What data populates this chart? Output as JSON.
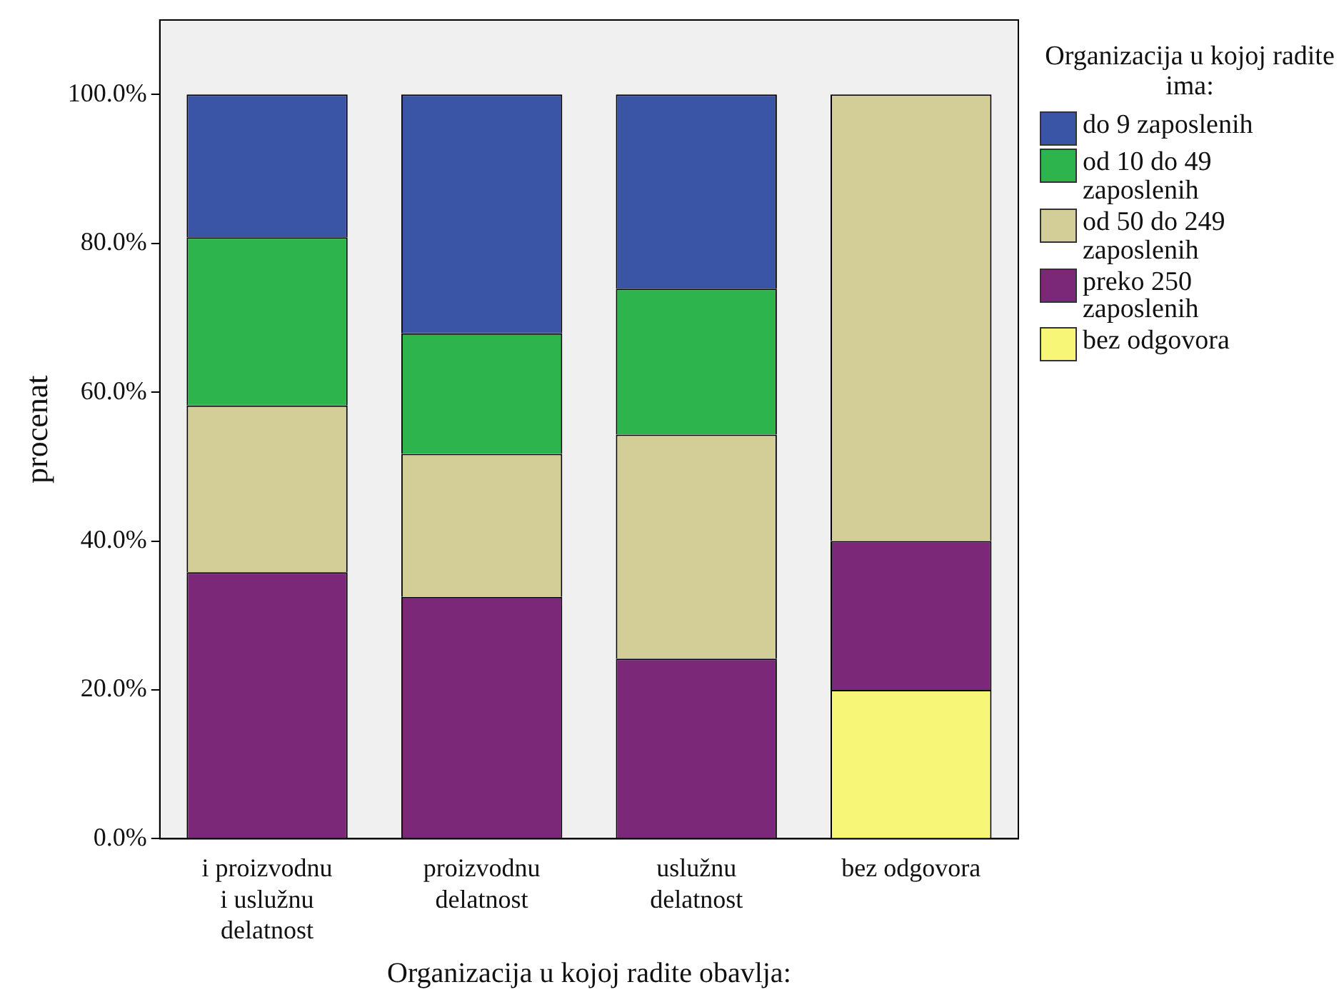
{
  "chart_data": {
    "type": "bar",
    "stacked": true,
    "xlabel": "Organizacija u kojoj radite obavlja:",
    "ylabel": "procenat",
    "legend_title": "Organizacija u kojoj radite ima:",
    "legend": "right",
    "categories": [
      "i proizvodnu i uslužnu delatnost",
      "proizvodnu delatnost",
      "uslužnu delatnost",
      "bez odgovora"
    ],
    "series": [
      {
        "name": "bez odgovora",
        "color": "#f8f677",
        "values": [
          0,
          0,
          0,
          20
        ]
      },
      {
        "name": "preko 250 zaposlenih",
        "color": "#7a2877",
        "values": [
          35.8,
          32.5,
          24.2,
          20
        ]
      },
      {
        "name": "od 50 do 249 zaposlenih",
        "color": "#d3ce98",
        "values": [
          22.4,
          19.2,
          30.1,
          60
        ]
      },
      {
        "name": "od 10 do 49 zaposlenih",
        "color": "#2db44c",
        "values": [
          22.6,
          16.2,
          19.6,
          0
        ]
      },
      {
        "name": "do 9 zaposlenih",
        "color": "#3a54a6",
        "values": [
          19.2,
          32.1,
          26.1,
          0
        ]
      }
    ],
    "ylim": [
      0,
      110
    ],
    "yticks": [
      {
        "value": 0,
        "label": "0.0%"
      },
      {
        "value": 20,
        "label": "20.0%"
      },
      {
        "value": 40,
        "label": "40.0%"
      },
      {
        "value": 60,
        "label": "60.0%"
      },
      {
        "value": 80,
        "label": "80.0%"
      },
      {
        "value": 100,
        "label": "100.0%"
      }
    ],
    "grid": false
  }
}
